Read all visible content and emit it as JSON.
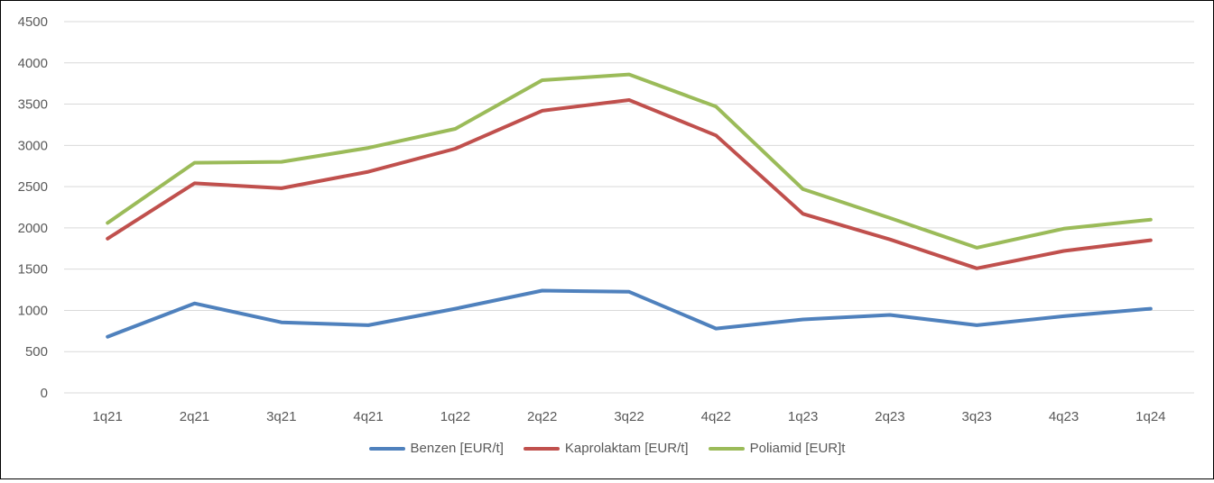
{
  "chart_data": {
    "type": "line",
    "categories": [
      "1q21",
      "2q21",
      "3q21",
      "4q21",
      "1q22",
      "2q22",
      "3q22",
      "4q22",
      "1q23",
      "2q23",
      "3q23",
      "4q23",
      "1q24"
    ],
    "ylim": [
      0,
      4500
    ],
    "yticks": [
      0,
      500,
      1000,
      1500,
      2000,
      2500,
      3000,
      3500,
      4000,
      4500
    ],
    "grid": true,
    "legend_position": "bottom",
    "series": [
      {
        "name": "Benzen [EUR/t]",
        "color": "#4F81BD",
        "values": [
          680,
          1085,
          855,
          820,
          1020,
          1240,
          1225,
          780,
          890,
          945,
          820,
          930,
          1020
        ]
      },
      {
        "name": "Kaprolaktam [EUR/t]",
        "color": "#C0504D",
        "values": [
          1870,
          2540,
          2480,
          2680,
          2960,
          3420,
          3550,
          3120,
          2170,
          1860,
          1510,
          1720,
          1850
        ]
      },
      {
        "name": "Poliamid [EUR]t",
        "color": "#9BBB59",
        "values": [
          2060,
          2790,
          2800,
          2970,
          3200,
          3790,
          3860,
          3470,
          2470,
          2120,
          1760,
          1990,
          2100
        ]
      }
    ]
  }
}
